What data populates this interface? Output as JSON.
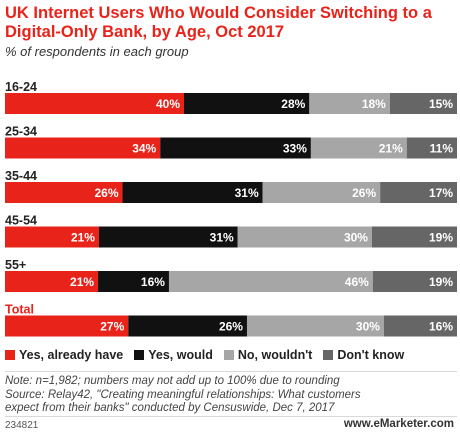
{
  "title": "UK Internet Users Who Would Consider Switching to a Digital-Only Bank, by Age, Oct 2017",
  "subtitle": "% of respondents in each group",
  "colors": {
    "yes_already": "#e8231a",
    "yes_would": "#111111",
    "no_wouldnt": "#a6a6a6",
    "dont_know": "#666666",
    "total_label": "#e8231a"
  },
  "chart_data": {
    "type": "bar",
    "orientation": "horizontal",
    "stacked": true,
    "title": "UK Internet Users Who Would Consider Switching to a Digital-Only Bank, by Age, Oct 2017",
    "subtitle": "% of respondents in each group",
    "categories": [
      "16-24",
      "25-34",
      "35-44",
      "45-54",
      "55+",
      "Total"
    ],
    "series": [
      {
        "name": "Yes, already have",
        "values": [
          40,
          34,
          26,
          21,
          21,
          27
        ]
      },
      {
        "name": "Yes, would",
        "values": [
          28,
          33,
          31,
          31,
          16,
          26
        ]
      },
      {
        "name": "No, wouldn't",
        "values": [
          18,
          21,
          26,
          30,
          46,
          30
        ]
      },
      {
        "name": "Don't know",
        "values": [
          15,
          11,
          17,
          19,
          19,
          16
        ]
      }
    ],
    "value_suffix": "%",
    "legend_position": "bottom",
    "grid": false
  },
  "legend": [
    {
      "label": "Yes, already have",
      "color": "#e8231a"
    },
    {
      "label": "Yes, would",
      "color": "#111111"
    },
    {
      "label": "No, wouldn't",
      "color": "#a6a6a6"
    },
    {
      "label": "Don't know",
      "color": "#666666"
    }
  ],
  "notes": {
    "line1": "Note: n=1,982; numbers may not add up to 100% due to rounding",
    "line2": "Source: Relay42, \"Creating meaningful relationships: What customers",
    "line3": "expect from their banks\" conducted by Censuswide, Dec 7, 2017"
  },
  "footer": {
    "chart_id": "234821",
    "brand": "www.eMarketer.com"
  }
}
